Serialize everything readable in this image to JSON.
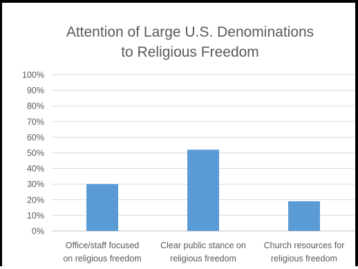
{
  "chart_data": {
    "type": "bar",
    "title_lines": [
      "Attention of Large U.S. Denominations",
      "to Religious Freedom"
    ],
    "categories": [
      [
        "Office/staff focused",
        "on religious freedom"
      ],
      [
        "Clear public stance on",
        "religious freedom"
      ],
      [
        "Church resources for",
        "religious freedom"
      ]
    ],
    "values": [
      30,
      52,
      19
    ],
    "ylim": [
      0,
      100
    ],
    "yticks": [
      "0%",
      "10%",
      "20%",
      "30%",
      "40%",
      "50%",
      "60%",
      "70%",
      "80%",
      "90%",
      "100%"
    ],
    "grid": true,
    "legend": "none",
    "bar_color": "#5b9bd5"
  }
}
